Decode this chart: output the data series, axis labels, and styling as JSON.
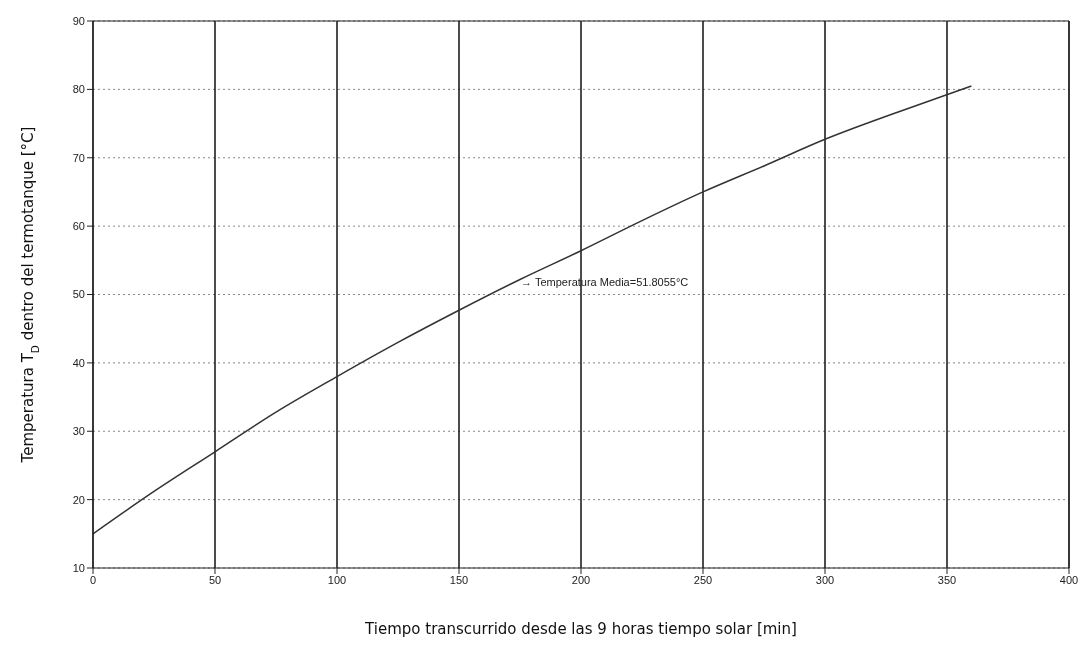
{
  "chart_data": {
    "type": "line",
    "xlabel": "Tiempo transcurrido desde las 9 horas tiempo solar [min]",
    "ylabel": "Temperatura T$_{D}$ dentro del termotanque  [°C]",
    "x": [
      0,
      25,
      50,
      75,
      100,
      125,
      150,
      175,
      200,
      225,
      250,
      275,
      300,
      330,
      360
    ],
    "series": [
      {
        "color": "#333333",
        "values": [
          15,
          21.2,
          27,
          32.8,
          38,
          43,
          47.7,
          52.2,
          56.4,
          60.8,
          65,
          68.8,
          72.7,
          76.7,
          80.5
        ]
      }
    ],
    "xlim": [
      0,
      400
    ],
    "xticks": [
      0,
      50,
      100,
      150,
      200,
      250,
      300,
      350,
      400
    ],
    "ylim": [
      10,
      90
    ],
    "yticks": [
      10,
      20,
      30,
      40,
      50,
      60,
      70,
      80,
      90
    ],
    "grid": true,
    "marker": "none",
    "line_style": "solid",
    "annotations": [
      {
        "text": "→ Temperatura Media=51.8055°C",
        "x": 173,
        "y": 51.8
      }
    ]
  }
}
